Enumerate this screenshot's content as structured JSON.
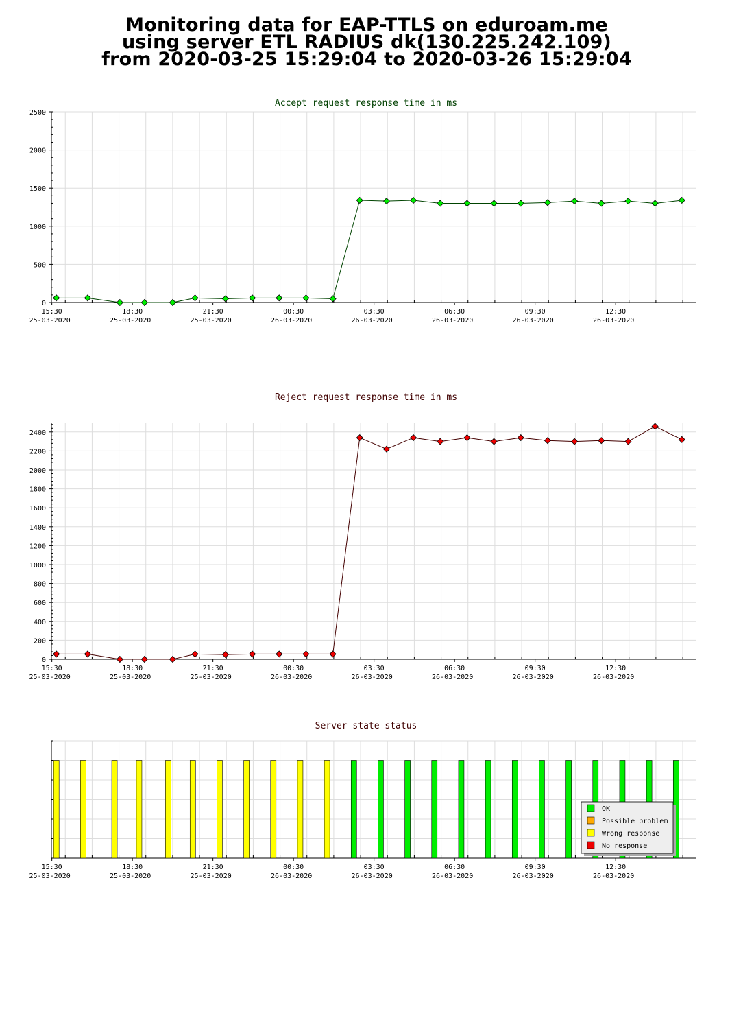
{
  "page": {
    "title_lines": [
      "Monitoring data for EAP-TTLS on eduroam.me",
      "using server ETL RADIUS dk(130.225.242.109)",
      "from 2020-03-25 15:29:04 to 2020-03-26 15:29:04"
    ]
  },
  "colors": {
    "accept_title": "#004000",
    "reject_title": "#400000",
    "status_title": "#400000",
    "accept_line": "#004400",
    "reject_line": "#440000",
    "accept_marker": "#00ee00",
    "reject_marker": "#ee0000",
    "ok": "#00ee00",
    "possible_problem": "#ffaa00",
    "wrong_response": "#ffff00",
    "no_response": "#ee0000",
    "grid": "#dddddd"
  },
  "x_axis": {
    "ticks": [
      {
        "time": "15:30",
        "date": "25-03-2020"
      },
      {
        "time": "18:30",
        "date": "25-03-2020"
      },
      {
        "time": "21:30",
        "date": "25-03-2020"
      },
      {
        "time": "00:30",
        "date": "26-03-2020"
      },
      {
        "time": "03:30",
        "date": "26-03-2020"
      },
      {
        "time": "06:30",
        "date": "26-03-2020"
      },
      {
        "time": "09:30",
        "date": "26-03-2020"
      },
      {
        "time": "12:30",
        "date": "26-03-2020"
      }
    ]
  },
  "chart_data": [
    {
      "type": "line",
      "title": "Accept request response time in ms",
      "xlabel": "",
      "ylabel": "",
      "ylim": [
        0,
        2500
      ],
      "yticks": [
        0,
        500,
        1000,
        1500,
        2000,
        2500
      ],
      "grid": true,
      "x": [
        "15:40",
        "16:50",
        "18:02",
        "18:57",
        "20:00",
        "20:50",
        "21:58",
        "22:58",
        "23:58",
        "00:58",
        "01:58",
        "02:58",
        "03:58",
        "04:58",
        "05:58",
        "06:58",
        "07:58",
        "08:58",
        "09:58",
        "10:58",
        "11:58",
        "12:58",
        "13:58",
        "14:58"
      ],
      "values": [
        60,
        60,
        0,
        0,
        0,
        60,
        50,
        60,
        60,
        60,
        50,
        1340,
        1330,
        1340,
        1300,
        1300,
        1300,
        1300,
        1310,
        1330,
        1300,
        1330,
        1300,
        1340
      ]
    },
    {
      "type": "line",
      "title": "Reject request response time in ms",
      "xlabel": "",
      "ylabel": "",
      "ylim": [
        0,
        2500
      ],
      "yticks": [
        0,
        200,
        400,
        600,
        800,
        1000,
        1200,
        1400,
        1600,
        1800,
        2000,
        2200,
        2400
      ],
      "grid": true,
      "x": [
        "15:40",
        "16:50",
        "18:02",
        "18:57",
        "20:00",
        "20:50",
        "21:58",
        "22:58",
        "23:58",
        "00:58",
        "01:58",
        "02:58",
        "03:58",
        "04:58",
        "05:58",
        "06:58",
        "07:58",
        "08:58",
        "09:58",
        "10:58",
        "11:58",
        "12:58",
        "13:58",
        "14:58"
      ],
      "values": [
        55,
        55,
        0,
        0,
        0,
        55,
        50,
        55,
        55,
        55,
        55,
        2340,
        2220,
        2340,
        2300,
        2340,
        2300,
        2340,
        2310,
        2300,
        2310,
        2300,
        2460,
        2320
      ]
    },
    {
      "type": "bar",
      "title": "Server state status",
      "xlabel": "",
      "ylabel": "",
      "grid": true,
      "legend": {
        "position": "bottom-right",
        "entries": [
          "OK",
          "Possible problem",
          "Wrong response",
          "No response"
        ]
      },
      "x": [
        "15:40",
        "16:40",
        "17:50",
        "18:45",
        "19:50",
        "20:45",
        "21:45",
        "22:45",
        "23:45",
        "00:45",
        "01:45",
        "02:45",
        "03:45",
        "04:45",
        "05:45",
        "06:45",
        "07:45",
        "08:45",
        "09:45",
        "10:45",
        "11:45",
        "12:45",
        "13:45",
        "14:45"
      ],
      "states": [
        "Wrong response",
        "Wrong response",
        "Wrong response",
        "Wrong response",
        "Wrong response",
        "Wrong response",
        "Wrong response",
        "Wrong response",
        "Wrong response",
        "Wrong response",
        "Wrong response",
        "OK",
        "OK",
        "OK",
        "OK",
        "OK",
        "OK",
        "OK",
        "OK",
        "OK",
        "OK",
        "OK",
        "OK",
        "OK"
      ]
    }
  ]
}
